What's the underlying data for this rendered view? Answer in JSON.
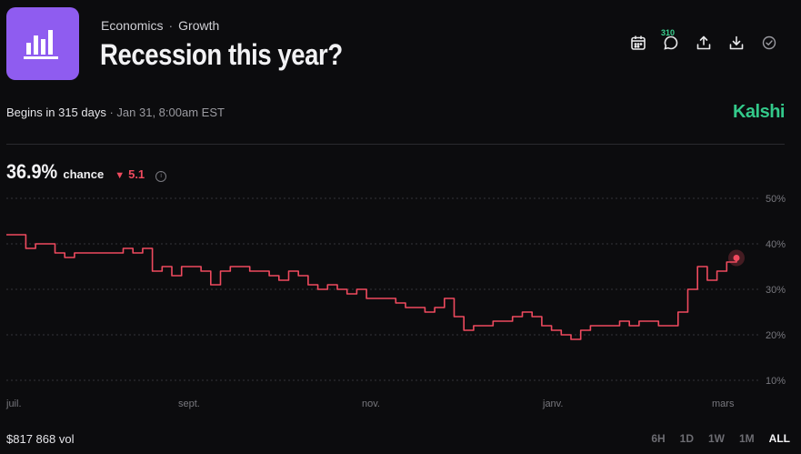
{
  "header": {
    "category": "Economics",
    "subcategory": "Growth",
    "separator": "·",
    "title": "Recession this year?",
    "comment_count": "310",
    "icons": [
      "calendar-icon",
      "comment-icon",
      "share-icon",
      "download-icon",
      "check-circle-icon"
    ]
  },
  "meta": {
    "begins": "Begins in 315 days",
    "date": "· Jan 31, 8:00am EST",
    "brand": "Kalshi"
  },
  "stat": {
    "percent": "36.9%",
    "chance_label": "chance",
    "delta_arrow": "▼",
    "delta": "5.1",
    "info_glyph": "i"
  },
  "chart_data": {
    "type": "line",
    "x_labels": [
      "juil.",
      "sept.",
      "nov.",
      "janv.",
      "mars"
    ],
    "y_ticks": [
      "50%",
      "40%",
      "30%",
      "20%",
      "10%"
    ],
    "ylim": [
      10,
      50
    ],
    "grid": true,
    "series": [
      {
        "color": "#ef4a5e",
        "values": [
          42,
          42,
          39,
          40,
          40,
          38,
          37,
          38,
          38,
          38,
          38,
          38,
          39,
          38,
          39,
          34,
          35,
          33,
          35,
          35,
          34,
          31,
          34,
          35,
          35,
          34,
          34,
          33,
          32,
          34,
          33,
          31,
          30,
          31,
          30,
          29,
          30,
          28,
          28,
          28,
          27,
          26,
          26,
          25,
          26,
          28,
          24,
          21,
          22,
          22,
          23,
          23,
          24,
          25,
          24,
          22,
          21,
          20,
          19,
          21,
          22,
          22,
          22,
          23,
          22,
          23,
          23,
          22,
          22,
          25,
          30,
          35,
          32,
          34,
          36,
          36.9
        ]
      }
    ]
  },
  "footer": {
    "volume": "$817 868 vol",
    "ranges": [
      "6H",
      "1D",
      "1W",
      "1M",
      "ALL"
    ],
    "active_range": "ALL"
  },
  "colors": {
    "accent_red": "#ef4a5e",
    "brand_green": "#33c98a",
    "logo_purple": "#8f5cf0"
  }
}
